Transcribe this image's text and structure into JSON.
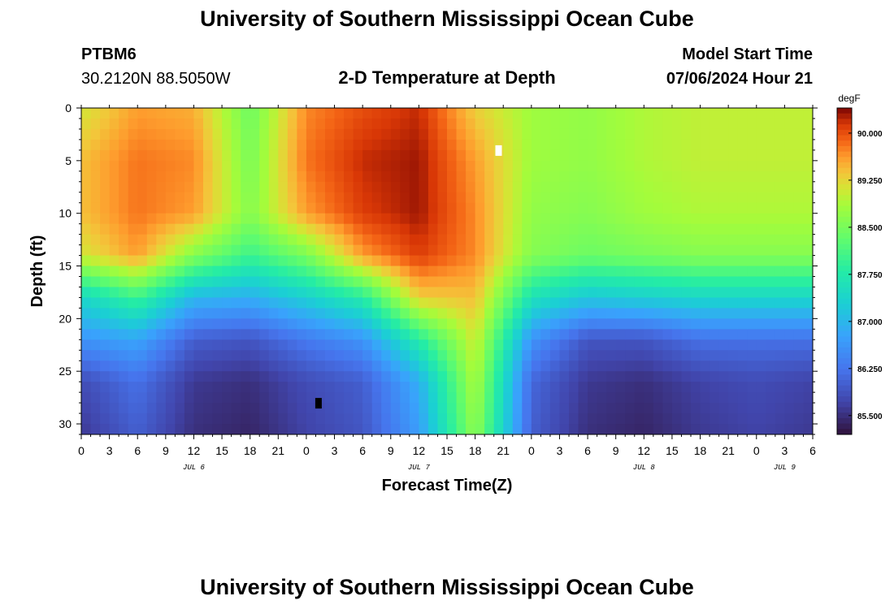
{
  "header": {
    "title": "University of Southern Mississippi Ocean Cube",
    "station_id": "PTBM6",
    "station_coords": "30.2120N  88.5050W",
    "plot_title": "2-D Temperature at Depth",
    "model_start_label": "Model Start Time",
    "model_start_value": "07/06/2024 Hour 21"
  },
  "footer": {
    "title": "University of Southern Mississippi Ocean Cube"
  },
  "chart_data": {
    "type": "heatmap",
    "title": "2-D Temperature at Depth",
    "xlabel": "Forecast Time(Z)",
    "ylabel": "Depth (ft)",
    "x_ticks": [
      "0",
      "3",
      "6",
      "9",
      "12",
      "15",
      "18",
      "21",
      "0",
      "3",
      "6",
      "9",
      "12",
      "15",
      "18",
      "21",
      "0",
      "3",
      "6",
      "9",
      "12",
      "15",
      "18",
      "21",
      "0",
      "3",
      "6"
    ],
    "x_range_hours": [
      0,
      78
    ],
    "y_ticks": [
      "0",
      "5",
      "10",
      "15",
      "20",
      "25",
      "30"
    ],
    "y_range_ft": [
      0,
      31
    ],
    "date_labels": [
      {
        "text": "JUL 6",
        "hour": 12
      },
      {
        "text": "JUL 7",
        "hour": 36
      },
      {
        "text": "JUL 8",
        "hour": 60
      },
      {
        "text": "JUL 9",
        "hour": 75
      }
    ],
    "colorbar": {
      "unit": "degF",
      "min": 85.2,
      "max": 90.4,
      "ticks": [
        "85.500",
        "86.250",
        "87.000",
        "87.750",
        "88.500",
        "89.250",
        "90.000"
      ],
      "tick_values": [
        85.5,
        86.25,
        87.0,
        87.75,
        88.5,
        89.25,
        90.0
      ]
    },
    "grid": {
      "hours": [
        0,
        6,
        12,
        18,
        24,
        30,
        36,
        42,
        48,
        54,
        60,
        66,
        72,
        78
      ],
      "depths_ft": [
        0,
        5,
        10,
        14,
        18,
        22,
        26,
        31
      ],
      "values": [
        [
          89.1,
          89.6,
          89.5,
          88.4,
          89.7,
          90.0,
          90.2,
          89.3,
          88.8,
          88.7,
          88.9,
          89.0,
          89.0,
          89.0
        ],
        [
          89.4,
          89.8,
          89.7,
          88.5,
          89.8,
          90.2,
          90.3,
          89.6,
          88.8,
          88.7,
          88.9,
          89.0,
          89.0,
          89.0
        ],
        [
          89.4,
          89.8,
          89.6,
          88.6,
          89.6,
          90.1,
          90.3,
          89.7,
          88.7,
          88.6,
          88.8,
          88.9,
          88.9,
          88.9
        ],
        [
          89.1,
          89.6,
          88.6,
          88.0,
          88.5,
          89.6,
          90.1,
          89.7,
          88.6,
          88.4,
          88.5,
          88.6,
          88.6,
          88.6
        ],
        [
          87.4,
          88.0,
          87.0,
          86.9,
          87.3,
          87.8,
          89.3,
          89.4,
          87.6,
          87.2,
          87.3,
          87.4,
          87.4,
          87.4
        ],
        [
          86.6,
          86.8,
          86.0,
          85.9,
          86.3,
          86.6,
          87.8,
          89.1,
          86.6,
          85.9,
          85.9,
          86.2,
          86.2,
          86.2
        ],
        [
          85.8,
          86.2,
          85.6,
          85.5,
          85.8,
          86.0,
          86.9,
          88.9,
          86.1,
          85.6,
          85.5,
          85.7,
          85.8,
          85.7
        ],
        [
          85.6,
          86.0,
          85.5,
          85.4,
          85.7,
          85.9,
          86.7,
          88.7,
          86.0,
          85.5,
          85.4,
          85.6,
          85.7,
          85.6
        ]
      ]
    },
    "markers": [
      {
        "hour": 44.5,
        "depth_ft": 4.0,
        "color": "#ffffff"
      },
      {
        "hour": 25.3,
        "depth_ft": 28.0,
        "color": "#000000"
      }
    ]
  }
}
